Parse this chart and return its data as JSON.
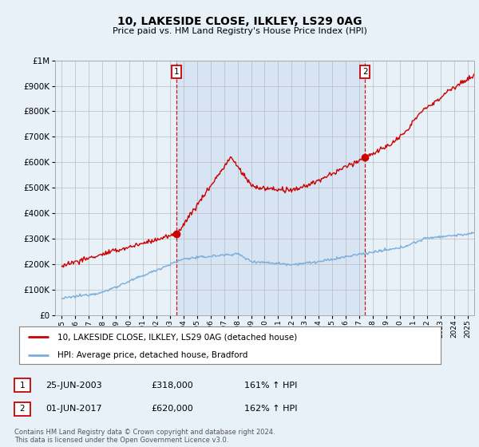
{
  "title": "10, LAKESIDE CLOSE, ILKLEY, LS29 0AG",
  "subtitle": "Price paid vs. HM Land Registry's House Price Index (HPI)",
  "legend_line1": "10, LAKESIDE CLOSE, ILKLEY, LS29 0AG (detached house)",
  "legend_line2": "HPI: Average price, detached house, Bradford",
  "annotation1_date": "25-JUN-2003",
  "annotation1_price": "£318,000",
  "annotation1_hpi": "161% ↑ HPI",
  "annotation2_date": "01-JUN-2017",
  "annotation2_price": "£620,000",
  "annotation2_hpi": "162% ↑ HPI",
  "footer": "Contains HM Land Registry data © Crown copyright and database right 2024.\nThis data is licensed under the Open Government Licence v3.0.",
  "red_color": "#cc0000",
  "blue_color": "#7aaddc",
  "shade_color": "#ddeeff",
  "background_color": "#e8f0f8",
  "plot_bg_color": "#e8f0f8",
  "marker1_x": 2003.49,
  "marker1_y": 318000,
  "marker2_x": 2017.42,
  "marker2_y": 620000,
  "ylim": [
    0,
    1000000
  ],
  "xlim": [
    1994.5,
    2025.5
  ]
}
